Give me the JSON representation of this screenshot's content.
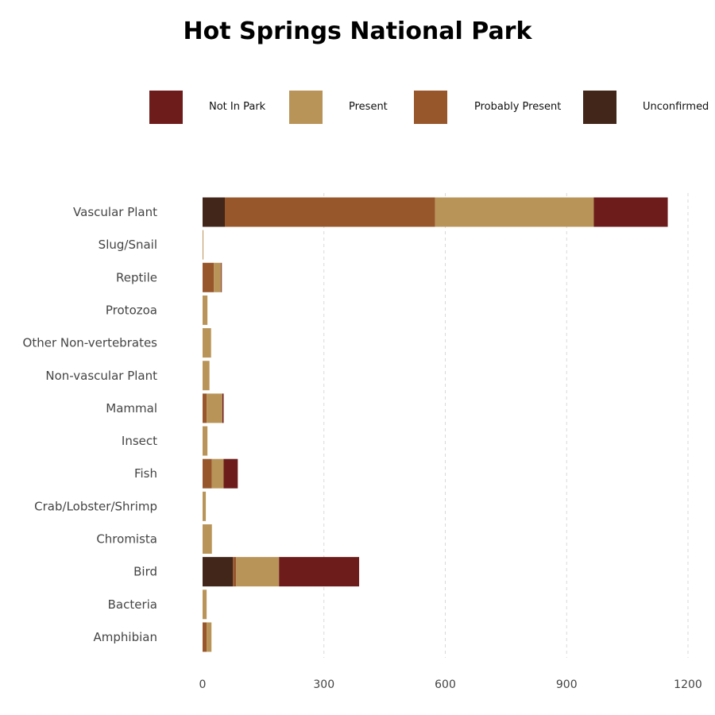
{
  "chart_data": {
    "type": "bar",
    "orientation": "horizontal",
    "stacked": true,
    "title": "Hot Springs National Park",
    "xlabel": "",
    "ylabel": "",
    "xlim": [
      0,
      1200
    ],
    "x_ticks": [
      0,
      300,
      600,
      900,
      1200
    ],
    "grid": "vertical dashed",
    "legend_position": "top",
    "categories": [
      "Vascular Plant",
      "Slug/Snail",
      "Reptile",
      "Protozoa",
      "Other Non-vertebrates",
      "Non-vascular Plant",
      "Mammal",
      "Insect",
      "Fish",
      "Crab/Lobster/Shrimp",
      "Chromista",
      "Bird",
      "Bacteria",
      "Amphibian"
    ],
    "series": [
      {
        "name": "Unconfirmed",
        "color": "#42261a",
        "values": [
          55,
          0,
          0,
          0,
          0,
          0,
          0,
          0,
          0,
          0,
          0,
          75,
          0,
          0
        ]
      },
      {
        "name": "Probably Present",
        "color": "#97572b",
        "values": [
          520,
          0,
          28,
          0,
          0,
          0,
          10,
          0,
          23,
          0,
          0,
          8,
          0,
          10
        ]
      },
      {
        "name": "Present",
        "color": "#b99458",
        "values": [
          392,
          2,
          18,
          12,
          21,
          17,
          39,
          12,
          29,
          8,
          23,
          106,
          10,
          12
        ]
      },
      {
        "name": "Not In Park",
        "color": "#6d1c1b",
        "values": [
          183,
          0,
          1,
          0,
          0,
          0,
          3,
          0,
          35,
          0,
          0,
          198,
          0,
          0
        ]
      }
    ],
    "legend_order": [
      "Not In Park",
      "Present",
      "Probably Present",
      "Unconfirmed"
    ]
  }
}
